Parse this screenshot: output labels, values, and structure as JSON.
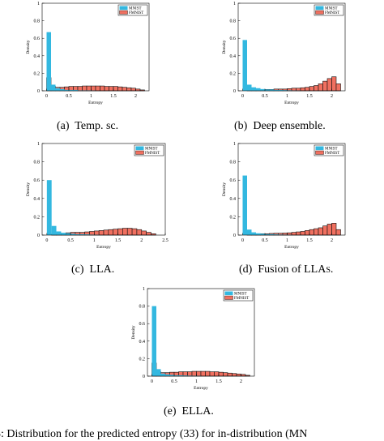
{
  "captions": [
    {
      "label": "(a)",
      "text": "Temp. sc.",
      "small_caps": ""
    },
    {
      "label": "(b)",
      "text": "Deep ensemble.",
      "small_caps": ""
    },
    {
      "label": "(c)",
      "text": "",
      "small_caps": "LLA."
    },
    {
      "label": "(d)",
      "text": "Fusion of ",
      "small_caps": "LLAs."
    },
    {
      "label": "(e)",
      "text": "",
      "small_caps": "ELLA."
    }
  ],
  "figure_caption": "g. 3: Distribution for the predicted entropy (33) for in-distribution (MN",
  "colors": {
    "mnist": "#33b8e0",
    "fmnist": "#f07060",
    "edge": "#111111"
  },
  "chart_data": [
    {
      "type": "bar",
      "id": "a",
      "xlabel": "Entropy",
      "ylabel": "Density",
      "xlim": [
        -0.1,
        2.3
      ],
      "ylim": [
        0,
        1
      ],
      "xticks": [
        "0",
        "0.5",
        "1",
        "1.5",
        "2"
      ],
      "yticks": [
        "0",
        "0.2",
        "0.4",
        "0.6",
        "0.8",
        "1"
      ],
      "bin_width": 0.1,
      "series": [
        {
          "name": "MNIST",
          "x": [
            0.0,
            0.1,
            0.2,
            0.3,
            0.4,
            0.5,
            0.6,
            0.7,
            0.8,
            0.9,
            1.0
          ],
          "values": [
            0.67,
            0.07,
            0.03,
            0.02,
            0.01,
            0.01,
            0.01,
            0.005,
            0.005,
            0.005,
            0.003
          ]
        },
        {
          "name": "FMNIST",
          "x": [
            0.0,
            0.1,
            0.2,
            0.3,
            0.4,
            0.5,
            0.6,
            0.7,
            0.8,
            0.9,
            1.0,
            1.1,
            1.2,
            1.3,
            1.4,
            1.5,
            1.6,
            1.7,
            1.8,
            1.9,
            2.0,
            2.1
          ],
          "values": [
            0.15,
            0.05,
            0.04,
            0.04,
            0.045,
            0.05,
            0.05,
            0.05,
            0.055,
            0.055,
            0.055,
            0.055,
            0.055,
            0.05,
            0.05,
            0.05,
            0.045,
            0.04,
            0.035,
            0.03,
            0.02,
            0.01
          ]
        }
      ],
      "legend": [
        "MNIST",
        "FMNIST"
      ]
    },
    {
      "type": "bar",
      "id": "b",
      "xlabel": "Entropy",
      "ylabel": "Density",
      "xlim": [
        -0.1,
        2.3
      ],
      "ylim": [
        0,
        1
      ],
      "xticks": [
        "0",
        "0.5",
        "1",
        "1.5",
        "2"
      ],
      "yticks": [
        "0",
        "0.2",
        "0.4",
        "0.6",
        "0.8",
        "1"
      ],
      "bin_width": 0.1,
      "series": [
        {
          "name": "MNIST",
          "x": [
            0.0,
            0.1,
            0.2,
            0.3,
            0.4,
            0.5,
            0.6,
            0.7,
            0.8,
            0.9,
            1.0,
            1.1,
            1.2
          ],
          "values": [
            0.58,
            0.07,
            0.04,
            0.03,
            0.02,
            0.015,
            0.015,
            0.01,
            0.01,
            0.008,
            0.006,
            0.004,
            0.003
          ]
        },
        {
          "name": "FMNIST",
          "x": [
            0.0,
            0.1,
            0.2,
            0.3,
            0.4,
            0.5,
            0.6,
            0.7,
            0.8,
            0.9,
            1.0,
            1.1,
            1.2,
            1.3,
            1.4,
            1.5,
            1.6,
            1.7,
            1.8,
            1.9,
            2.0,
            2.1
          ],
          "values": [
            0.0,
            0.005,
            0.008,
            0.01,
            0.012,
            0.015,
            0.015,
            0.02,
            0.02,
            0.02,
            0.025,
            0.03,
            0.03,
            0.035,
            0.04,
            0.05,
            0.06,
            0.08,
            0.11,
            0.14,
            0.16,
            0.08
          ]
        }
      ],
      "legend": [
        "MNIST",
        "FMNIST"
      ]
    },
    {
      "type": "bar",
      "id": "c",
      "xlabel": "Entropy",
      "ylabel": "Density",
      "xlim": [
        -0.1,
        2.5
      ],
      "ylim": [
        0,
        1
      ],
      "xticks": [
        "0",
        "0.5",
        "1",
        "1.5",
        "2",
        "2.5"
      ],
      "yticks": [
        "0",
        "0.2",
        "0.4",
        "0.6",
        "0.8",
        "1"
      ],
      "bin_width": 0.1,
      "series": [
        {
          "name": "MNIST",
          "x": [
            0.0,
            0.1,
            0.2,
            0.3,
            0.4,
            0.5,
            0.6,
            0.7,
            0.8,
            0.9,
            1.0
          ],
          "values": [
            0.6,
            0.1,
            0.04,
            0.025,
            0.02,
            0.015,
            0.01,
            0.01,
            0.008,
            0.005,
            0.004
          ]
        },
        {
          "name": "FMNIST",
          "x": [
            0.0,
            0.1,
            0.2,
            0.3,
            0.4,
            0.5,
            0.6,
            0.7,
            0.8,
            0.9,
            1.0,
            1.1,
            1.2,
            1.3,
            1.4,
            1.5,
            1.6,
            1.7,
            1.8,
            1.9,
            2.0,
            2.1,
            2.2
          ],
          "values": [
            0.0,
            0.01,
            0.015,
            0.02,
            0.025,
            0.03,
            0.03,
            0.03,
            0.035,
            0.04,
            0.045,
            0.05,
            0.055,
            0.06,
            0.065,
            0.07,
            0.075,
            0.075,
            0.07,
            0.06,
            0.045,
            0.03,
            0.015
          ]
        }
      ],
      "legend": [
        "MNIST",
        "FMNIST"
      ]
    },
    {
      "type": "bar",
      "id": "d",
      "xlabel": "Entropy",
      "ylabel": "Density",
      "xlim": [
        -0.1,
        2.3
      ],
      "ylim": [
        0,
        1
      ],
      "xticks": [
        "0",
        "0.5",
        "1",
        "1.5",
        "2"
      ],
      "yticks": [
        "0",
        "0.2",
        "0.4",
        "0.6",
        "0.8",
        "1"
      ],
      "bin_width": 0.1,
      "series": [
        {
          "name": "MNIST",
          "x": [
            0.0,
            0.1,
            0.2,
            0.3,
            0.4,
            0.5,
            0.6,
            0.7,
            0.8,
            0.9,
            1.0
          ],
          "values": [
            0.65,
            0.06,
            0.03,
            0.02,
            0.015,
            0.01,
            0.01,
            0.008,
            0.006,
            0.005,
            0.004
          ]
        },
        {
          "name": "FMNIST",
          "x": [
            0.0,
            0.1,
            0.2,
            0.3,
            0.4,
            0.5,
            0.6,
            0.7,
            0.8,
            0.9,
            1.0,
            1.1,
            1.2,
            1.3,
            1.4,
            1.5,
            1.6,
            1.7,
            1.8,
            1.9,
            2.0,
            2.1
          ],
          "values": [
            0.0,
            0.01,
            0.01,
            0.012,
            0.015,
            0.015,
            0.018,
            0.02,
            0.02,
            0.022,
            0.025,
            0.03,
            0.035,
            0.04,
            0.05,
            0.06,
            0.07,
            0.08,
            0.1,
            0.12,
            0.13,
            0.06
          ]
        }
      ],
      "legend": [
        "MNIST",
        "FMNIST"
      ]
    },
    {
      "type": "bar",
      "id": "e",
      "xlabel": "Entropy",
      "ylabel": "Density",
      "xlim": [
        -0.1,
        2.3
      ],
      "ylim": [
        0,
        1
      ],
      "xticks": [
        "0",
        "0.5",
        "1",
        "1.5",
        "2"
      ],
      "yticks": [
        "0",
        "0.2",
        "0.4",
        "0.6",
        "0.8",
        "1"
      ],
      "bin_width": 0.1,
      "series": [
        {
          "name": "MNIST",
          "x": [
            0.0,
            0.1,
            0.2,
            0.3,
            0.4,
            0.5,
            0.6,
            0.7,
            0.8,
            0.9,
            1.0
          ],
          "values": [
            0.8,
            0.08,
            0.03,
            0.02,
            0.015,
            0.01,
            0.01,
            0.008,
            0.006,
            0.005,
            0.004
          ]
        },
        {
          "name": "FMNIST",
          "x": [
            0.0,
            0.1,
            0.2,
            0.3,
            0.4,
            0.5,
            0.6,
            0.7,
            0.8,
            0.9,
            1.0,
            1.1,
            1.2,
            1.3,
            1.4,
            1.5,
            1.6,
            1.7,
            1.8,
            1.9,
            2.0,
            2.1
          ],
          "values": [
            0.15,
            0.05,
            0.04,
            0.04,
            0.045,
            0.045,
            0.05,
            0.05,
            0.05,
            0.055,
            0.055,
            0.055,
            0.055,
            0.05,
            0.05,
            0.045,
            0.04,
            0.035,
            0.03,
            0.025,
            0.02,
            0.01
          ]
        }
      ],
      "legend": [
        "MNIST",
        "FMNIST"
      ]
    }
  ]
}
